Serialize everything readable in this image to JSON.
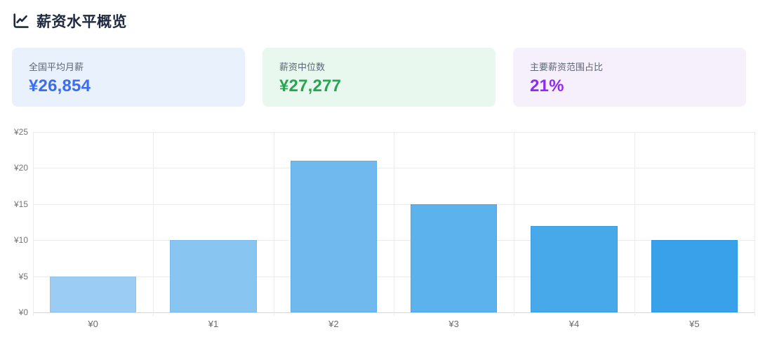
{
  "header": {
    "title": "薪资水平概览",
    "icon": "line-chart-icon",
    "title_color": "#1f2940"
  },
  "stats": [
    {
      "label": "全国平均月薪",
      "value": "¥26,854",
      "value_color": "#3a6df0",
      "bg_color": "#e9f1fd"
    },
    {
      "label": "薪资中位数",
      "value": "¥27,277",
      "value_color": "#27a651",
      "bg_color": "#e8f8ee"
    },
    {
      "label": "主要薪资范围占比",
      "value": "21%",
      "value_color": "#8e2bf0",
      "bg_color": "#f6effc"
    }
  ],
  "chart_data": {
    "type": "bar",
    "title": "",
    "xlabel": "",
    "ylabel": "",
    "categories": [
      "¥0",
      "¥1",
      "¥2",
      "¥3",
      "¥4",
      "¥5"
    ],
    "values": [
      5,
      10,
      21,
      15,
      12,
      10
    ],
    "y_tick_labels": [
      "¥0",
      "¥5",
      "¥10",
      "¥15",
      "¥20",
      "¥25"
    ],
    "ylim": [
      0,
      25
    ],
    "y_step": 5,
    "grid": "on",
    "legend_position": "none",
    "bar_colors": [
      "#9bcdf4",
      "#88c5f1",
      "#6fb9ee",
      "#5cb2ec",
      "#48a9ea",
      "#38a1e9"
    ],
    "bar_border_colors": [
      "#8ec4f0",
      "#79bced",
      "#5dafe9",
      "#48a7e8",
      "#379ee5",
      "#2897e4"
    ],
    "grid_color": "#ececec",
    "axis_line_color": "#d6d6d6",
    "tick_label_color": "#6b6b6b"
  }
}
